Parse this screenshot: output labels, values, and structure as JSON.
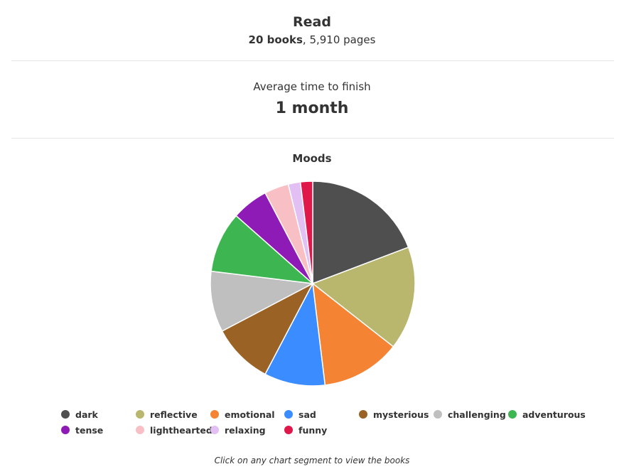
{
  "read": {
    "title": "Read",
    "books": "20 books",
    "separator": ",",
    "pages": "5,910 pages"
  },
  "average": {
    "label": "Average time to finish",
    "value": "1 month"
  },
  "footer": {
    "note": "Click on any chart segment to view the books"
  },
  "chart_data": {
    "type": "pie",
    "title": "Moods",
    "legend_position": "bottom",
    "slices": [
      {
        "label": "dark",
        "value": 20,
        "color": "#4f4f4f"
      },
      {
        "label": "reflective",
        "value": 17,
        "color": "#b9b66d"
      },
      {
        "label": "emotional",
        "value": 13,
        "color": "#f48434"
      },
      {
        "label": "sad",
        "value": 10,
        "color": "#3b8cff"
      },
      {
        "label": "mysterious",
        "value": 10,
        "color": "#9a6224"
      },
      {
        "label": "challenging",
        "value": 10,
        "color": "#bfbfbf"
      },
      {
        "label": "adventurous",
        "value": 10,
        "color": "#3db651"
      },
      {
        "label": "tense",
        "value": 6,
        "color": "#8e1bb5"
      },
      {
        "label": "lighthearted",
        "value": 4,
        "color": "#f8c0c4"
      },
      {
        "label": "relaxing",
        "value": 2,
        "color": "#e3c0f4"
      },
      {
        "label": "funny",
        "value": 2,
        "color": "#e0174b"
      }
    ]
  }
}
